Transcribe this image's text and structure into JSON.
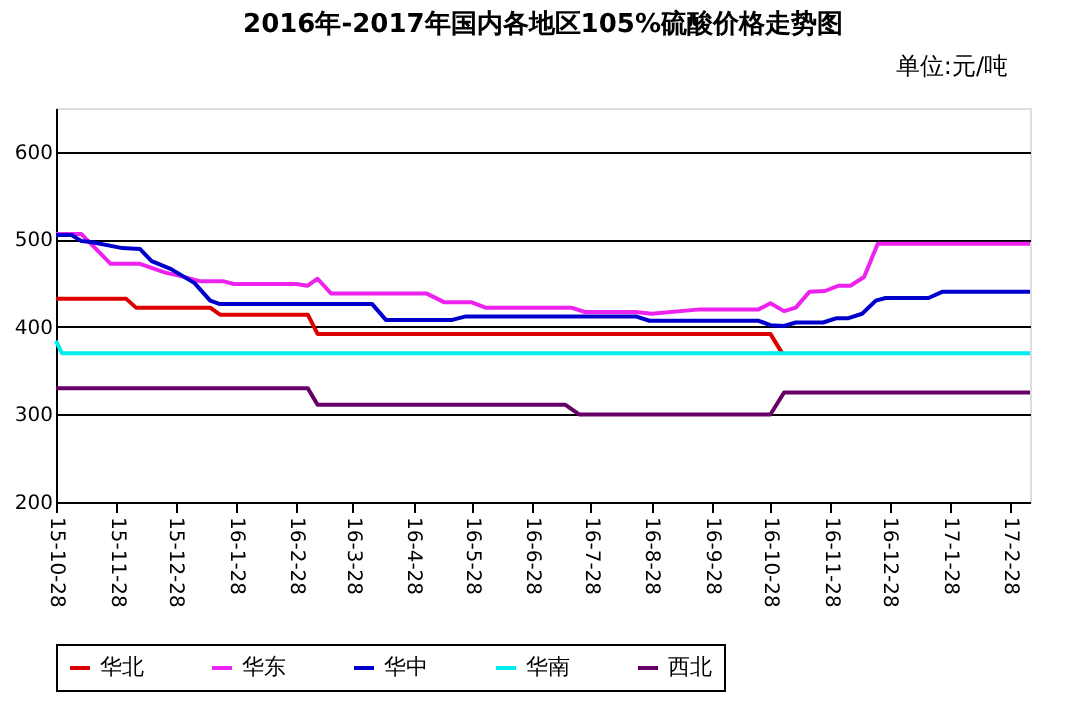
{
  "chart_data": {
    "type": "line",
    "title": "2016年-2017年国内各地区105%硫酸价格走势图",
    "annotations": [
      "单位:元/吨"
    ],
    "xlim": [
      "2015-10-28",
      "2017-03-10"
    ],
    "xticks": [
      {
        "value": "2015-10-28",
        "label": "15-10-28"
      },
      {
        "value": "2015-11-28",
        "label": "15-11-28"
      },
      {
        "value": "2015-12-28",
        "label": "15-12-28"
      },
      {
        "value": "2016-01-28",
        "label": "16-1-28"
      },
      {
        "value": "2016-02-28",
        "label": "16-2-28"
      },
      {
        "value": "2016-03-28",
        "label": "16-3-28"
      },
      {
        "value": "2016-04-28",
        "label": "16-4-28"
      },
      {
        "value": "2016-05-28",
        "label": "16-5-28"
      },
      {
        "value": "2016-06-28",
        "label": "16-6-28"
      },
      {
        "value": "2016-07-28",
        "label": "16-7-28"
      },
      {
        "value": "2016-08-28",
        "label": "16-8-28"
      },
      {
        "value": "2016-09-28",
        "label": "16-9-28"
      },
      {
        "value": "2016-10-28",
        "label": "16-10-28"
      },
      {
        "value": "2016-11-28",
        "label": "16-11-28"
      },
      {
        "value": "2016-12-28",
        "label": "16-12-28"
      },
      {
        "value": "2017-01-28",
        "label": "17-1-28"
      },
      {
        "value": "2017-02-28",
        "label": "17-2-28"
      }
    ],
    "ylim": [
      200,
      650
    ],
    "yticks": [
      200,
      300,
      400,
      500,
      600
    ],
    "grid": "y",
    "legend": "bottom",
    "line_style": "solid",
    "marker": "none",
    "series": [
      {
        "name": "华北",
        "color": "#dd0000",
        "x": [
          "2015-10-28",
          "2015-12-03",
          "2015-12-08",
          "2016-01-15",
          "2016-01-20",
          "2016-03-05",
          "2016-03-10",
          "2016-10-28",
          "2016-11-03"
        ],
        "values": [
          432,
          432,
          422,
          422,
          414,
          414,
          392,
          392,
          370
        ]
      },
      {
        "name": "华东",
        "color": "#ee22ee",
        "x": [
          "2015-10-28",
          "2015-11-10",
          "2015-11-25",
          "2015-12-10",
          "2015-12-23",
          "2015-12-31",
          "2016-01-10",
          "2016-01-22",
          "2016-01-27",
          "2016-02-28",
          "2016-03-05",
          "2016-03-10",
          "2016-03-17",
          "2016-05-05",
          "2016-05-14",
          "2016-05-28",
          "2016-06-04",
          "2016-07-18",
          "2016-07-25",
          "2016-08-20",
          "2016-08-28",
          "2016-09-22",
          "2016-10-22",
          "2016-10-28",
          "2016-11-04",
          "2016-11-10",
          "2016-11-17",
          "2016-11-25",
          "2016-12-02",
          "2016-12-08",
          "2016-12-15",
          "2016-12-22",
          "2017-03-10"
        ],
        "values": [
          506,
          506,
          472,
          472,
          462,
          458,
          452,
          452,
          449,
          449,
          447,
          455,
          438,
          438,
          428,
          428,
          422,
          422,
          417,
          417,
          415,
          420,
          420,
          427,
          418,
          422,
          440,
          441,
          447,
          447,
          457,
          495,
          495
        ]
      },
      {
        "name": "华中",
        "color": "#0000cc",
        "x": [
          "2015-10-28",
          "2015-11-05",
          "2015-11-10",
          "2015-11-15",
          "2015-12-01",
          "2015-12-10",
          "2015-12-16",
          "2015-12-26",
          "2016-01-07",
          "2016-01-15",
          "2016-01-20",
          "2016-04-07",
          "2016-04-14",
          "2016-05-18",
          "2016-05-25",
          "2016-08-20",
          "2016-08-27",
          "2016-10-22",
          "2016-10-28",
          "2016-11-04",
          "2016-11-10",
          "2016-11-24",
          "2016-12-01",
          "2016-12-07",
          "2016-12-14",
          "2016-12-21",
          "2016-12-26",
          "2017-01-17",
          "2017-01-24",
          "2017-03-10"
        ],
        "values": [
          505,
          505,
          498,
          497,
          490,
          489,
          475,
          466,
          450,
          430,
          426,
          426,
          408,
          408,
          412,
          412,
          407,
          407,
          402,
          401,
          405,
          405,
          410,
          410,
          415,
          430,
          433,
          433,
          440,
          440
        ]
      },
      {
        "name": "华南",
        "color": "#00eeee",
        "x": [
          "2015-10-28",
          "2015-10-31",
          "2017-03-10"
        ],
        "values": [
          384,
          370,
          370
        ]
      },
      {
        "name": "西北",
        "color": "#660066",
        "x": [
          "2015-10-28",
          "2016-03-05",
          "2016-03-10",
          "2016-07-15",
          "2016-07-22",
          "2016-10-28",
          "2016-11-04",
          "2017-03-10"
        ],
        "values": [
          330,
          330,
          311,
          311,
          300,
          300,
          325,
          325
        ]
      }
    ]
  }
}
